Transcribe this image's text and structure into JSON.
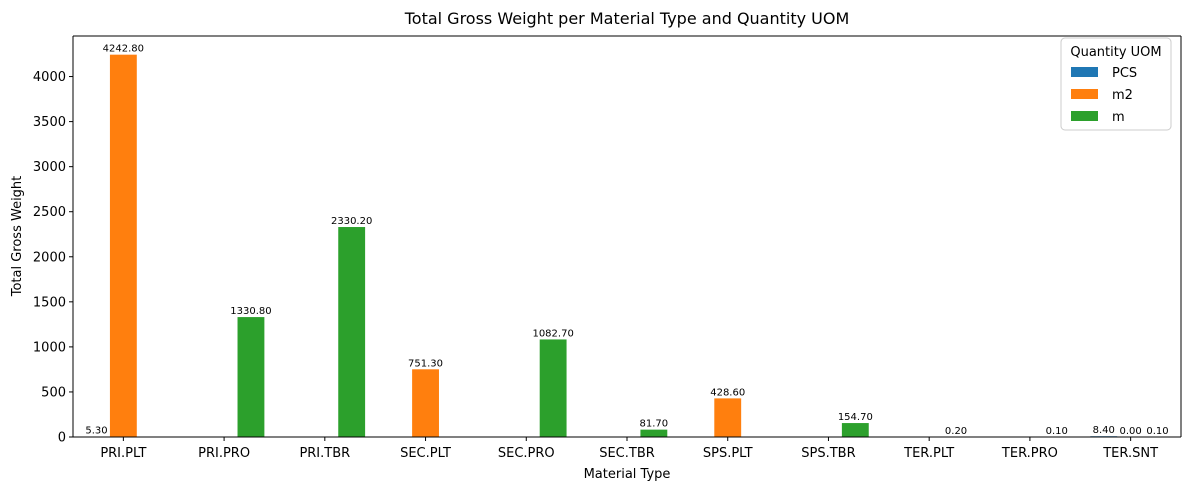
{
  "chart_data": {
    "type": "bar",
    "title": "Total Gross Weight per Material Type and Quantity UOM",
    "xlabel": "Material Type",
    "ylabel": "Total Gross Weight",
    "ylim": [
      0,
      4450
    ],
    "yticks": [
      0,
      500,
      1000,
      1500,
      2000,
      2500,
      3000,
      3500,
      4000
    ],
    "grid": false,
    "legend": {
      "title": "Quantity UOM",
      "position": "top-right"
    },
    "categories": [
      "PRI.PLT",
      "PRI.PRO",
      "PRI.TBR",
      "SEC.PLT",
      "SEC.PRO",
      "SEC.TBR",
      "SPS.PLT",
      "SPS.TBR",
      "TER.PLT",
      "TER.PRO",
      "TER.SNT"
    ],
    "series": [
      {
        "name": "PCS",
        "color": "#1f77b4",
        "values": [
          5.3,
          null,
          null,
          null,
          null,
          null,
          null,
          null,
          null,
          null,
          8.4
        ],
        "labels": [
          "5.30",
          null,
          null,
          null,
          null,
          null,
          null,
          null,
          null,
          null,
          "8.40"
        ]
      },
      {
        "name": "m2",
        "color": "#ff7f0e",
        "values": [
          4242.8,
          null,
          null,
          751.3,
          null,
          null,
          428.6,
          null,
          null,
          null,
          0.0
        ],
        "labels": [
          "4242.80",
          null,
          null,
          "751.30",
          null,
          null,
          "428.60",
          null,
          null,
          null,
          "0.00"
        ]
      },
      {
        "name": "m",
        "color": "#2ca02c",
        "values": [
          null,
          1330.8,
          2330.2,
          null,
          1082.7,
          81.7,
          null,
          154.7,
          0.2,
          0.1,
          0.1
        ],
        "labels": [
          null,
          "1330.80",
          "2330.20",
          null,
          "1082.70",
          "81.70",
          null,
          "154.70",
          "0.20",
          "0.10",
          "0.10"
        ]
      }
    ]
  }
}
